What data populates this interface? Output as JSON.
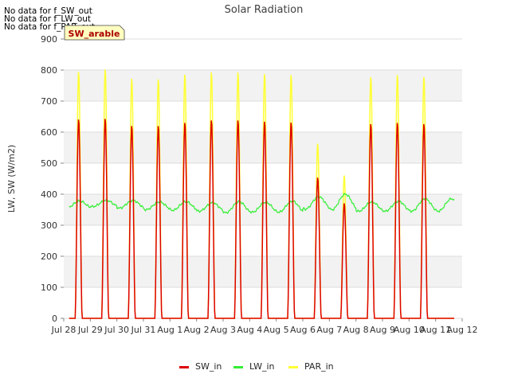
{
  "chart_data": {
    "type": "line",
    "title": "Solar Radiation",
    "xlabel": "",
    "ylabel": "LW, SW (W/m2)",
    "ylim": [
      0,
      900
    ],
    "yticks": [
      0,
      100,
      200,
      300,
      400,
      500,
      600,
      700,
      800,
      900
    ],
    "xlim": [
      0,
      15
    ],
    "xtick_labels": [
      "Jul 28",
      "Jul 29",
      "Jul 30",
      "Jul 31",
      "Aug 1",
      "Aug 2",
      "Aug 3",
      "Aug 4",
      "Aug 5",
      "Aug 6",
      "Aug 7",
      "Aug 8",
      "Aug 9",
      "Aug 10",
      "Aug 11",
      "Aug 12"
    ],
    "grid": true,
    "annotation_box": "SW_arable",
    "no_data_notes": [
      "No data for f_SW_out",
      "No data for f_LW_out",
      "No data for f_PAR_out"
    ],
    "series": [
      {
        "name": "SW_in",
        "color": "#dd0000",
        "daily_peaks": [
          643,
          645,
          622,
          622,
          632,
          640,
          640,
          636,
          633,
          455,
          372,
          628,
          632,
          628
        ]
      },
      {
        "name": "LW_in",
        "color": "#33ee33",
        "daily_range": [
          [
            355,
            378
          ],
          [
            360,
            380
          ],
          [
            355,
            380
          ],
          [
            350,
            375
          ],
          [
            348,
            376
          ],
          [
            345,
            372
          ],
          [
            340,
            376
          ],
          [
            342,
            374
          ],
          [
            342,
            378
          ],
          [
            352,
            392
          ],
          [
            350,
            400
          ],
          [
            345,
            375
          ],
          [
            345,
            377
          ],
          [
            345,
            385
          ]
        ]
      },
      {
        "name": "PAR_in",
        "color": "#ffff33",
        "daily_peaks": [
          797,
          805,
          775,
          773,
          788,
          795,
          795,
          790,
          787,
          565,
          462,
          780,
          787,
          780
        ]
      }
    ],
    "legend_position": "bottom-center"
  }
}
